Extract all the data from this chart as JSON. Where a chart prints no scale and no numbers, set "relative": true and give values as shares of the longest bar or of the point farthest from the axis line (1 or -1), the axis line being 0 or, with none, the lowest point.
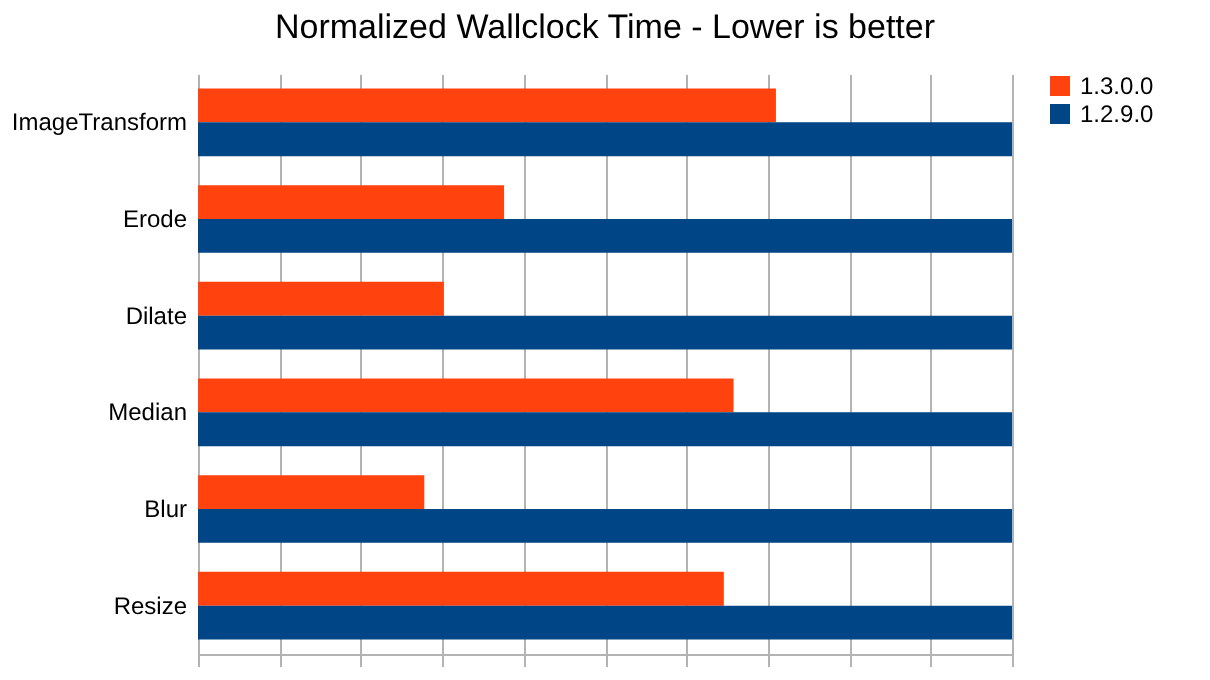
{
  "chart_data": {
    "type": "bar",
    "orientation": "horizontal",
    "relative": true,
    "title": "Normalized Wallclock Time - Lower is better",
    "categories": [
      "ImageTransform",
      "Erode",
      "Dilate",
      "Median",
      "Blur",
      "Resize"
    ],
    "series": [
      {
        "name": "1.3.0.0",
        "color": "#ff420e",
        "values": [
          0.71,
          0.376,
          0.302,
          0.658,
          0.278,
          0.646
        ]
      },
      {
        "name": "1.2.9.0",
        "color": "#004586",
        "values": [
          1,
          1,
          1,
          1,
          1,
          1
        ]
      }
    ],
    "grid": "x",
    "legend": "right"
  }
}
